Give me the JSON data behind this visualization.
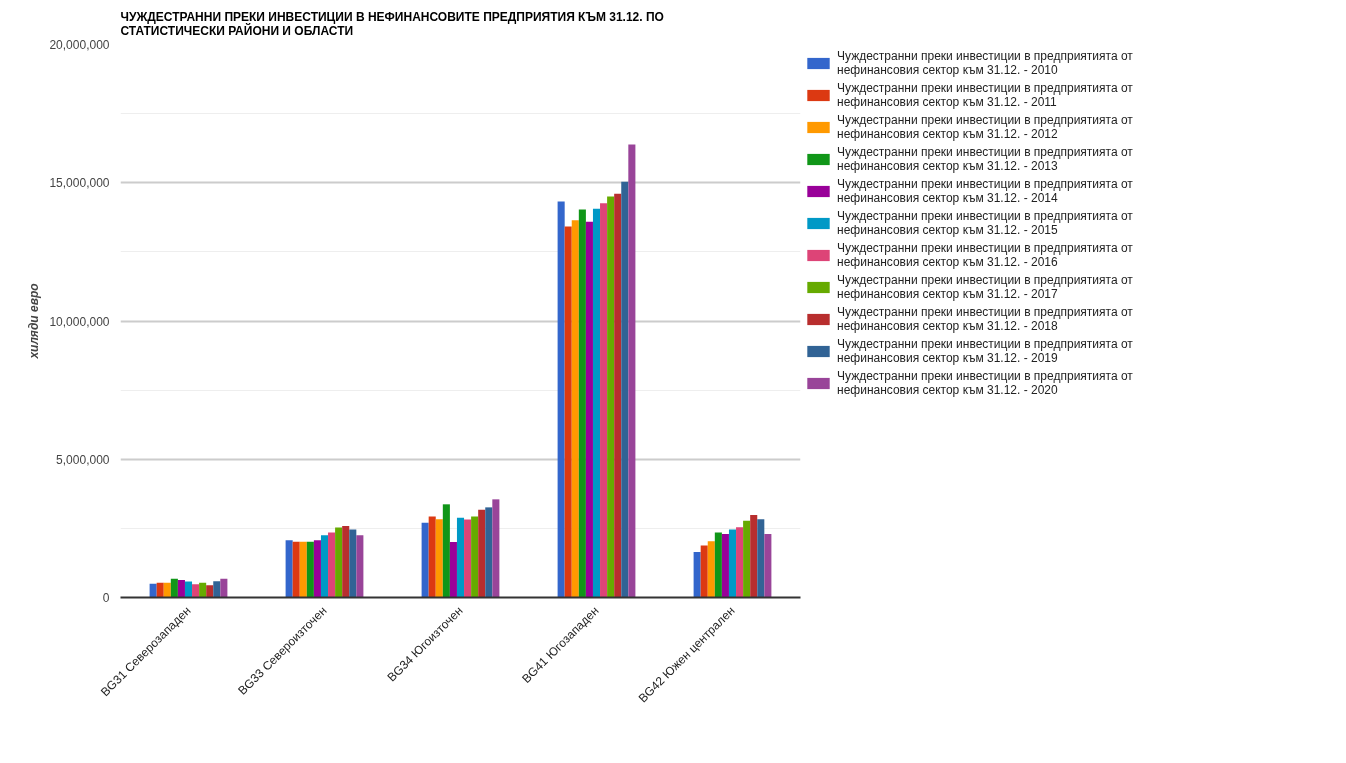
{
  "chart_data": {
    "type": "bar",
    "title": "ЧУЖДЕСТРАННИ ПРЕКИ ИНВЕСТИЦИИ В НЕФИНАНСОВИТЕ ПРЕДПРИЯТИЯ КЪМ 31.12. ПО СТАТИСТИЧЕСКИ РАЙОНИ И ОБЛАСТИ",
    "ylabel": "хиляди евро",
    "categories": [
      "BG31 Северозападен",
      "BG33 Североизточен",
      "BG34 Югоизточен",
      "BG41 Югозападен",
      "BG42 Южен централен"
    ],
    "ylim": [
      0,
      20000000
    ],
    "yticks": [
      0,
      {
        "value": 5000000,
        "label": "5,000,000"
      },
      {
        "value": 10000000,
        "label": "10,000,000"
      },
      {
        "value": 15000000,
        "label": "15,000,000"
      },
      {
        "value": 20000000,
        "label": "20,000,000"
      }
    ],
    "grid": "y",
    "legend": "right",
    "series": [
      {
        "name": "Чуждестранни преки инвестиции в предприятията от нефинансовия сектор към 31.12. - 2010",
        "color": "#3366cc",
        "values": [
          500000,
          2070000,
          2700000,
          14320000,
          1650000
        ]
      },
      {
        "name": "Чуждестранни преки инвестиции в предприятията от нефинансовия сектор към 31.12. - 2011",
        "color": "#dc3912",
        "values": [
          530000,
          2020000,
          2930000,
          13420000,
          1880000
        ]
      },
      {
        "name": "Чуждестранни преки инвестиции в предприятията от нефинансовия сектор към 31.12. - 2012",
        "color": "#ff9900",
        "values": [
          530000,
          2020000,
          2830000,
          13640000,
          2030000
        ]
      },
      {
        "name": "Чуждестранни преки инвестиции в предприятията от нефинансовия сектор към 31.12. - 2013",
        "color": "#109618",
        "values": [
          680000,
          2020000,
          3370000,
          14030000,
          2350000
        ]
      },
      {
        "name": "Чуждестранни преки инвестиции в предприятията от нефинансовия сектор към 31.12. - 2014",
        "color": "#990099",
        "values": [
          630000,
          2070000,
          2010000,
          13590000,
          2300000
        ]
      },
      {
        "name": "Чуждестранни преки инвестиции в предприятията от нефинансовия сектор към 31.12. - 2015",
        "color": "#0099c6",
        "values": [
          580000,
          2250000,
          2880000,
          14060000,
          2460000
        ]
      },
      {
        "name": "Чуждестранни преки инвестиции в предприятията от нефинансовия сектор към 31.12. - 2016",
        "color": "#dd4477",
        "values": [
          480000,
          2350000,
          2820000,
          14260000,
          2540000
        ]
      },
      {
        "name": "Чуждестранни преки инвестиции в предприятията от нефинансовия сектор към 31.12. - 2017",
        "color": "#66aa00",
        "values": [
          530000,
          2530000,
          2930000,
          14500000,
          2780000
        ]
      },
      {
        "name": "Чуждестранни преки инвестиции в предприятията от нефинансовия сектор към 31.12. - 2018",
        "color": "#b82e2e",
        "values": [
          440000,
          2590000,
          3170000,
          14600000,
          2980000
        ]
      },
      {
        "name": "Чуждестранни преки инвестиции в предприятията от нефинансовия сектор към 31.12. - 2019",
        "color": "#316395",
        "values": [
          590000,
          2460000,
          3260000,
          15040000,
          2830000
        ]
      },
      {
        "name": "Чуждестранни преки инвестиции в предприятията от нефинансовия сектор към 31.12. - 2020",
        "color": "#994499",
        "values": [
          680000,
          2250000,
          3550000,
          16380000,
          2300000
        ]
      }
    ]
  }
}
